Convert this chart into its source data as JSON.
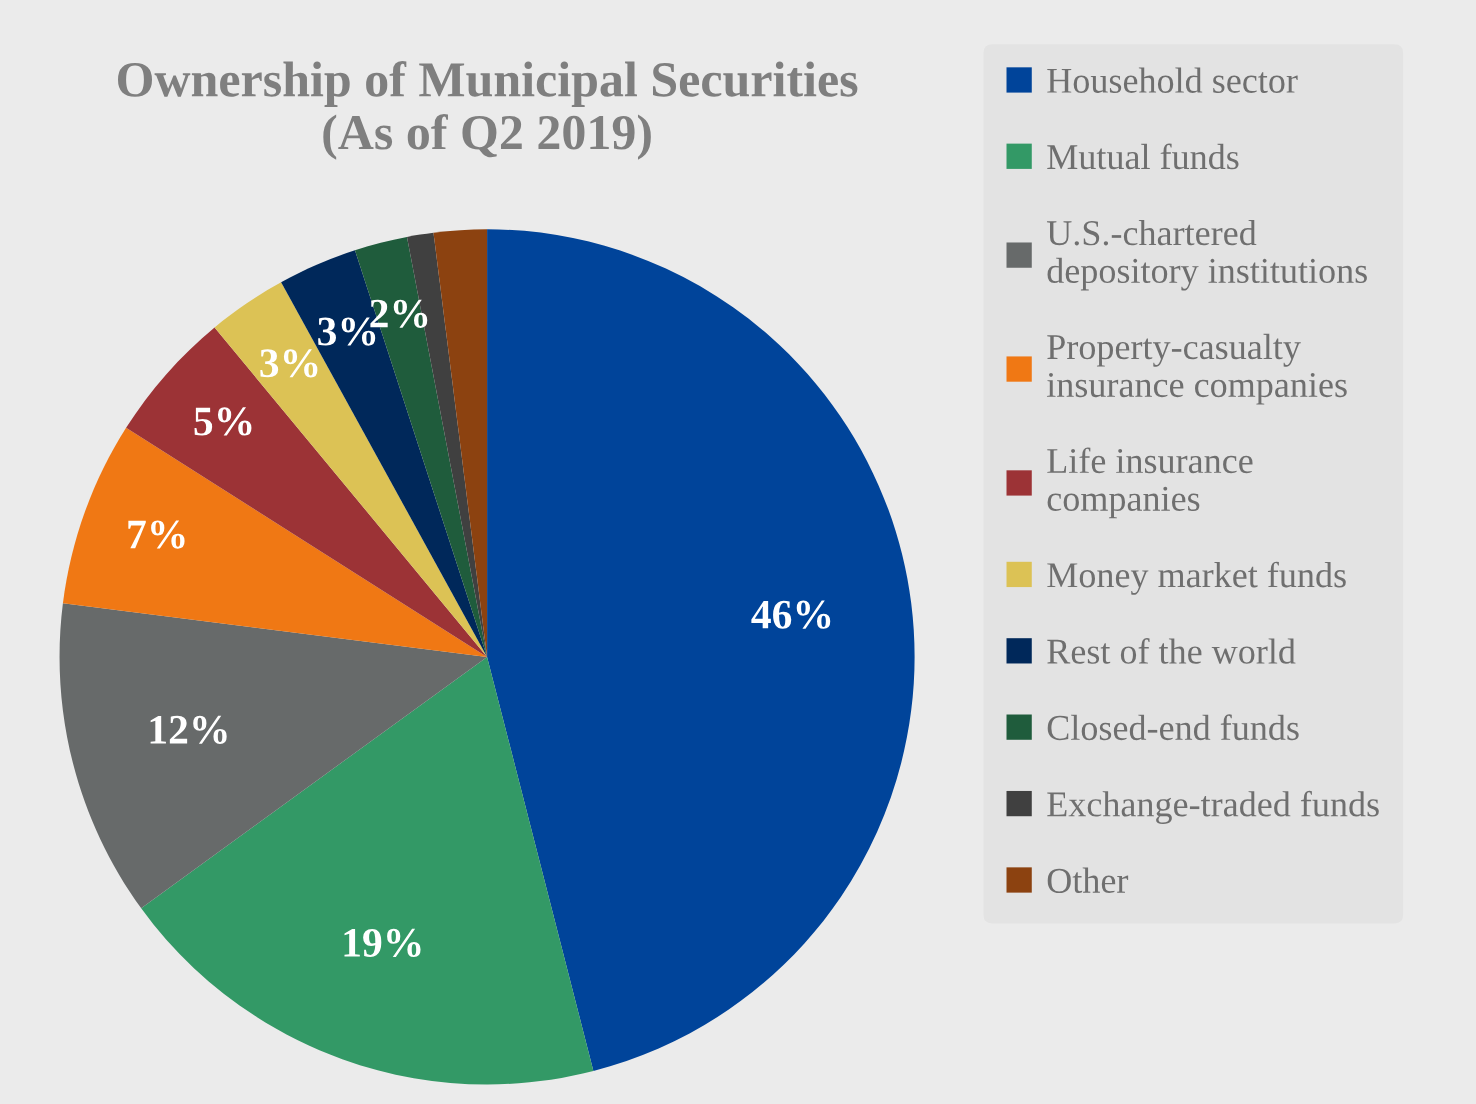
{
  "chart_data": {
    "type": "pie",
    "title": "Ownership of Municipal Securities\n(As of Q2 2019)",
    "categories": [
      "Household sector",
      "Mutual funds",
      "U.S.-chartered\ndepository institutions",
      "Property-casualty\ninsurance companies",
      "Life insurance\ncompanies",
      "Money market funds",
      "Rest of the world",
      "Closed-end funds",
      "Exchange-traded funds",
      "Other"
    ],
    "values": [
      46,
      19,
      12,
      7,
      5,
      3,
      3,
      2,
      1,
      2
    ],
    "value_labels": [
      "46%",
      "19%",
      "12%",
      "7%",
      "5%",
      "3%",
      "3%",
      "2%",
      null,
      null
    ],
    "colors": [
      "#00449a",
      "#339966",
      "#676a6a",
      "#f07814",
      "#9c3336",
      "#dcc255",
      "#00285a",
      "#1f5c3c",
      "#404040",
      "#8c4210"
    ],
    "legend": "right"
  }
}
